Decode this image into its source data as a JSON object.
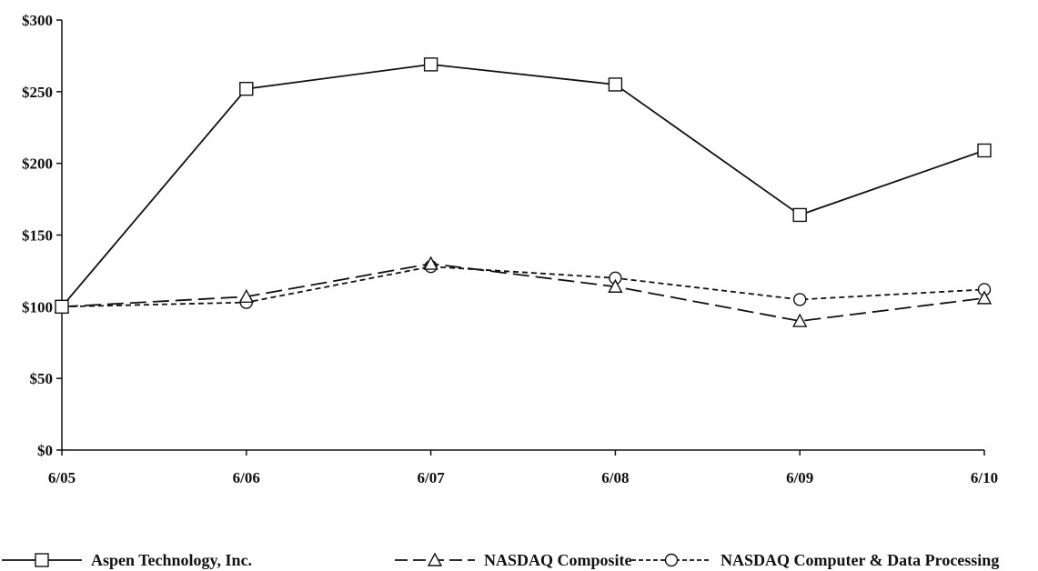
{
  "chart_data": {
    "type": "line",
    "title": "",
    "xlabel": "",
    "ylabel": "",
    "categories": [
      "6/05",
      "6/06",
      "6/07",
      "6/08",
      "6/09",
      "6/10"
    ],
    "y_ticks": [
      "$0",
      "$50",
      "$100",
      "$150",
      "$200",
      "$250",
      "$300"
    ],
    "ylim": [
      0,
      300
    ],
    "grid": false,
    "legend_position": "bottom",
    "series": [
      {
        "name": "Aspen Technology, Inc.",
        "values": [
          100,
          252,
          269,
          255,
          164,
          209
        ],
        "marker": "square",
        "dash": "solid",
        "color": "#111111"
      },
      {
        "name": "NASDAQ Composite",
        "values": [
          100,
          107,
          130,
          114,
          90,
          106
        ],
        "marker": "triangle",
        "dash": "long-dash",
        "color": "#111111"
      },
      {
        "name": "NASDAQ Computer & Data Processing",
        "values": [
          100,
          103,
          128,
          120,
          105,
          112
        ],
        "marker": "circle",
        "dash": "short-dash",
        "color": "#111111"
      }
    ]
  }
}
